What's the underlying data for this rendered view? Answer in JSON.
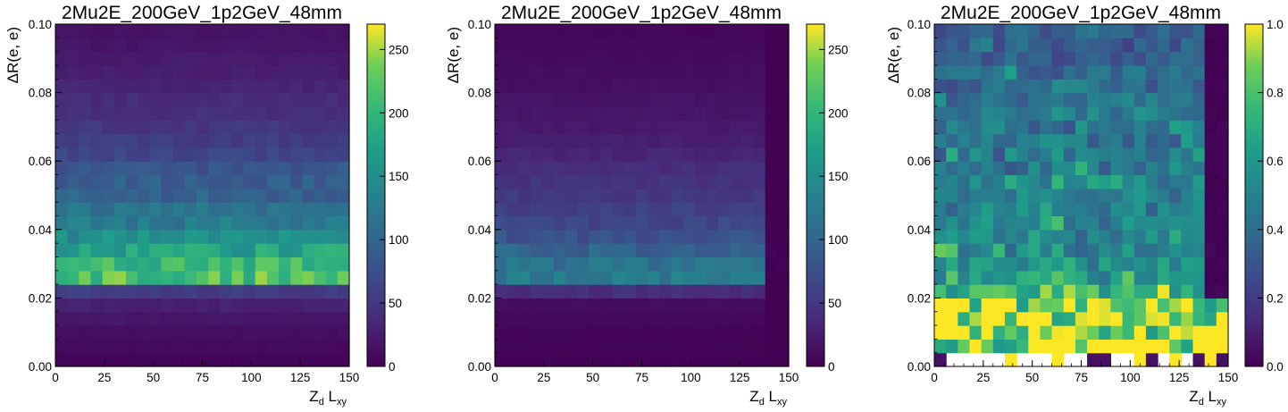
{
  "chart_data": [
    {
      "type": "heatmap",
      "title": "2Mu2E_200GeV_1p2GeV_48mm",
      "xlabel": {
        "main": "Z",
        "sub1": "d",
        "mid": " L",
        "sub2": "xy"
      },
      "ylabel": "ΔR(e, e)",
      "xlim": [
        0,
        150
      ],
      "ylim": [
        0,
        0.1
      ],
      "xticks": [
        "0",
        "25",
        "50",
        "75",
        "100",
        "125",
        "150"
      ],
      "yticks": [
        "0.00",
        "0.02",
        "0.04",
        "0.06",
        "0.08",
        "0.10"
      ],
      "colormap": "viridis",
      "colorbar": {
        "min": 0,
        "max": 270,
        "ticks": [
          "0",
          "50",
          "100",
          "150",
          "200",
          "250"
        ]
      },
      "bins": {
        "x": 25,
        "y": 25
      },
      "row_profile": {
        "y_bin_centers": [
          0.002,
          0.006,
          0.01,
          0.014,
          0.018,
          0.022,
          0.026,
          0.03,
          0.034,
          0.038,
          0.042,
          0.046,
          0.05,
          0.054,
          0.058,
          0.062,
          0.066,
          0.07,
          0.074,
          0.078,
          0.082,
          0.086,
          0.09,
          0.094,
          0.098
        ],
        "approx_counts": [
          4,
          8,
          12,
          18,
          28,
          55,
          215,
          200,
          175,
          150,
          125,
          115,
          95,
          90,
          80,
          65,
          55,
          48,
          40,
          38,
          30,
          25,
          22,
          18,
          15
        ],
        "x_dependence": "uniform across Zd Lxy"
      }
    },
    {
      "type": "heatmap",
      "title": "2Mu2E_200GeV_1p2GeV_48mm",
      "xlabel": {
        "main": "Z",
        "sub1": "d",
        "mid": " L",
        "sub2": "xy"
      },
      "ylabel": "ΔR(e, e)",
      "xlim": [
        0,
        150
      ],
      "ylim": [
        0,
        0.1
      ],
      "xticks": [
        "0",
        "25",
        "50",
        "75",
        "100",
        "125",
        "150"
      ],
      "yticks": [
        "0.00",
        "0.02",
        "0.04",
        "0.06",
        "0.08",
        "0.10"
      ],
      "colormap": "viridis",
      "colorbar": {
        "min": 0,
        "max": 270,
        "ticks": [
          "0",
          "50",
          "100",
          "150",
          "200",
          "250"
        ]
      },
      "bins": {
        "x": 25,
        "y": 25
      },
      "row_profile": {
        "y_bin_centers": [
          0.002,
          0.006,
          0.01,
          0.014,
          0.018,
          0.022,
          0.026,
          0.03,
          0.034,
          0.038,
          0.042,
          0.046,
          0.05,
          0.054,
          0.058,
          0.062,
          0.066,
          0.07,
          0.074,
          0.078,
          0.082,
          0.086,
          0.09,
          0.094,
          0.098
        ],
        "approx_counts": [
          2,
          3,
          4,
          6,
          10,
          40,
          125,
          115,
          95,
          78,
          65,
          58,
          50,
          45,
          40,
          32,
          26,
          22,
          18,
          16,
          12,
          10,
          8,
          6,
          5
        ],
        "x_dependence": "uniform for Zd Lxy below 140, near zero at 140-150"
      }
    },
    {
      "type": "heatmap",
      "title": "2Mu2E_200GeV_1p2GeV_48mm",
      "xlabel": {
        "main": "Z",
        "sub1": "d",
        "mid": " L",
        "sub2": "xy"
      },
      "ylabel": "ΔR(e, e)",
      "xlim": [
        0,
        150
      ],
      "ylim": [
        0,
        0.1
      ],
      "xticks": [
        "0",
        "25",
        "50",
        "75",
        "100",
        "125",
        "150"
      ],
      "yticks": [
        "0.00",
        "0.02",
        "0.04",
        "0.06",
        "0.08",
        "0.10"
      ],
      "colormap": "viridis",
      "colorbar": {
        "min": 0,
        "max": 1.0,
        "ticks": [
          "0.0",
          "0.2",
          "0.4",
          "0.6",
          "0.8",
          "1.0"
        ]
      },
      "bins": {
        "x": 25,
        "y": 25
      },
      "description_values": "ratio of second panel to first panel; empty (white) bins where first panel has no entries; values near 1.0 at lowest ΔR bins, ~0.3-0.6 elsewhere"
    }
  ]
}
